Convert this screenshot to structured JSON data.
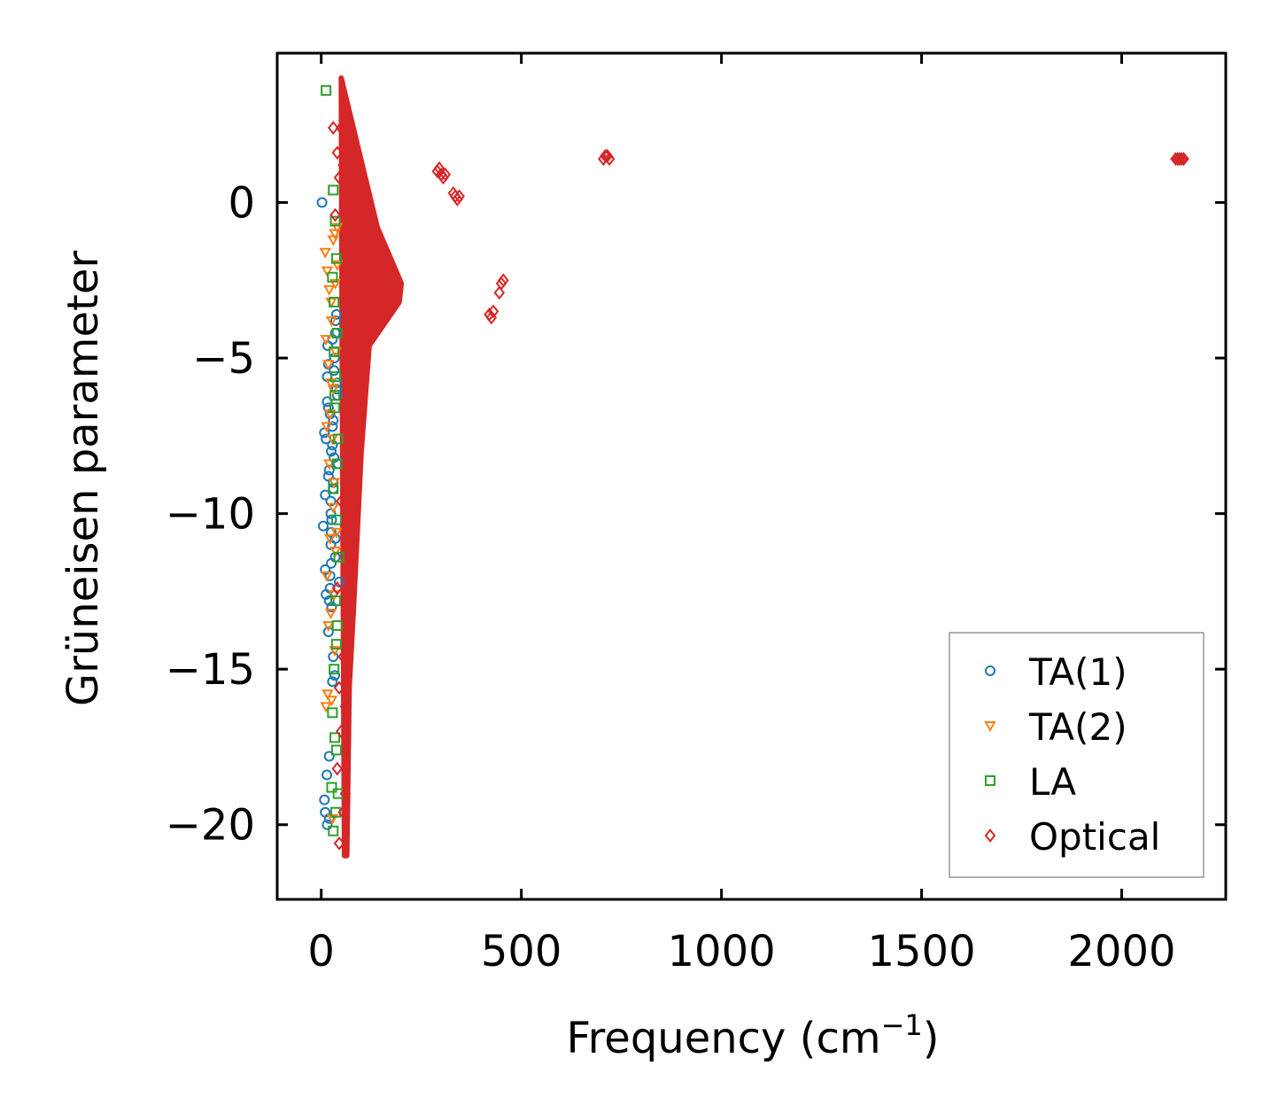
{
  "chart_data": {
    "type": "scatter",
    "xlabel": "Frequency (cm",
    "xlabel_sup": "−1",
    "xlabel_close": ")",
    "ylabel": "Grüneisen parameter",
    "xlim": [
      -110,
      2260
    ],
    "ylim": [
      -22.4,
      4.8
    ],
    "xticks": [
      0,
      500,
      1000,
      1500,
      2000
    ],
    "xtick_labels": [
      "0",
      "500",
      "1000",
      "1500",
      "2000"
    ],
    "yticks": [
      0,
      -5,
      -10,
      -15,
      -20
    ],
    "ytick_labels": [
      "0",
      "−5",
      "−10",
      "−15",
      "−20"
    ],
    "legend_position": "lower-right",
    "series": [
      {
        "name": "TA(1)",
        "marker": "circle",
        "color": "#1f77b4",
        "x": [
          2,
          5,
          8,
          10,
          12,
          15,
          18,
          20,
          22,
          25,
          28,
          30,
          33,
          35,
          38,
          40,
          42,
          45,
          10,
          14,
          18,
          22,
          26,
          30,
          34,
          38,
          20,
          24,
          28,
          32,
          15,
          25,
          35,
          12,
          18,
          24,
          30,
          8,
          16,
          26,
          36,
          20,
          28,
          40,
          10,
          30,
          20,
          15,
          25,
          35,
          22,
          32,
          18,
          28,
          24
        ],
        "y": [
          0.0,
          -10.4,
          -19.2,
          -19.6,
          -7.6,
          -5.6,
          -8.8,
          -12.8,
          -6.8,
          -11.6,
          -7.2,
          -9.0,
          -5.0,
          -4.2,
          -3.6,
          -6.2,
          -8.4,
          -12.2,
          -11.8,
          -18.4,
          -13.8,
          -12.0,
          -10.2,
          -14.6,
          -15.2,
          -6.0,
          -17.8,
          -9.6,
          -7.8,
          -5.4,
          -20.0,
          -8.0,
          -10.8,
          -12.6,
          -6.6,
          -11.0,
          -9.2,
          -7.4,
          -4.6,
          -13.0,
          -3.8,
          -19.8,
          -15.4,
          -5.8,
          -9.4,
          -7.0,
          -8.6,
          -6.4,
          -10.6,
          -11.4,
          -12.4,
          -8.2,
          -5.2,
          -4.4,
          -10.0
        ]
      },
      {
        "name": "TA(2)",
        "marker": "triangle-down",
        "color": "#ff7f0e",
        "x": [
          10,
          15,
          20,
          25,
          30,
          35,
          40,
          12,
          18,
          22,
          28,
          32,
          38,
          14,
          24,
          34,
          16,
          26,
          36,
          20,
          30,
          12,
          22,
          32,
          28,
          18,
          26,
          36,
          40,
          24,
          14,
          34,
          30
        ],
        "y": [
          -1.6,
          -2.2,
          -2.8,
          -3.2,
          -1.2,
          -2.6,
          -0.8,
          -4.4,
          -5.2,
          -6.8,
          -7.6,
          -9.0,
          -10.6,
          -12.0,
          -13.2,
          -14.4,
          -15.8,
          -16.0,
          -11.2,
          -8.4,
          -6.0,
          -16.2,
          -10.8,
          -12.6,
          -19.8,
          -13.6,
          -3.8,
          -4.8,
          -2.0,
          -5.8,
          -7.2,
          -1.0,
          -9.8
        ]
      },
      {
        "name": "LA",
        "marker": "square",
        "color": "#2ca02c",
        "x": [
          12,
          30,
          35,
          38,
          28,
          32,
          40,
          36,
          34,
          42,
          30,
          38,
          44,
          36,
          40,
          32,
          28,
          34,
          38,
          42,
          36,
          30,
          40,
          34,
          32,
          38,
          26
        ],
        "y": [
          3.6,
          0.4,
          -0.6,
          -1.8,
          -2.4,
          -3.2,
          -4.2,
          -5.6,
          -6.6,
          -7.6,
          -9.2,
          -10.2,
          -11.4,
          -12.8,
          -13.6,
          -15.0,
          -16.4,
          -17.2,
          -17.6,
          -19.0,
          -19.6,
          -20.2,
          -8.4,
          -6.2,
          -4.8,
          -14.2,
          -18.8
        ]
      },
      {
        "name": "Optical",
        "marker": "diamond",
        "color": "#d62728",
        "x": [
          30,
          40,
          50,
          60,
          45,
          55,
          35,
          65,
          50,
          60,
          40,
          70,
          55,
          45,
          60,
          50,
          40,
          60,
          55,
          45,
          290,
          295,
          300,
          305,
          310,
          330,
          335,
          340,
          345,
          420,
          425,
          430,
          445,
          450,
          455,
          705,
          710,
          715,
          720,
          2135,
          2140,
          2145,
          2150,
          2155
        ],
        "y": [
          2.4,
          1.6,
          2.4,
          2.0,
          0.8,
          1.2,
          -0.4,
          -8.4,
          -9.6,
          -10.4,
          -12.4,
          -13.8,
          -14.6,
          -15.6,
          -16.2,
          -17.0,
          -18.2,
          -19.0,
          -19.6,
          -20.6,
          1.0,
          1.1,
          0.9,
          0.8,
          0.9,
          0.3,
          0.2,
          0.1,
          0.2,
          -3.6,
          -3.7,
          -3.5,
          -2.9,
          -2.6,
          -2.5,
          1.4,
          1.5,
          1.5,
          1.4,
          1.4,
          1.4,
          1.4,
          1.4,
          1.4
        ]
      }
    ],
    "dense_region": {
      "series": "Optical",
      "color": "#d62728",
      "envelope_left": [
        [
          50,
          4.0
        ],
        [
          52,
          -4.0
        ],
        [
          54,
          -10.0
        ],
        [
          56,
          -15.8
        ],
        [
          58,
          -21.0
        ]
      ],
      "envelope_right": [
        [
          140,
          -0.8
        ],
        [
          200,
          -2.6
        ],
        [
          195,
          -3.2
        ],
        [
          120,
          -4.6
        ],
        [
          100,
          -8.0
        ],
        [
          80,
          -13.2
        ],
        [
          70,
          -15.6
        ],
        [
          64,
          -21.0
        ]
      ]
    }
  }
}
